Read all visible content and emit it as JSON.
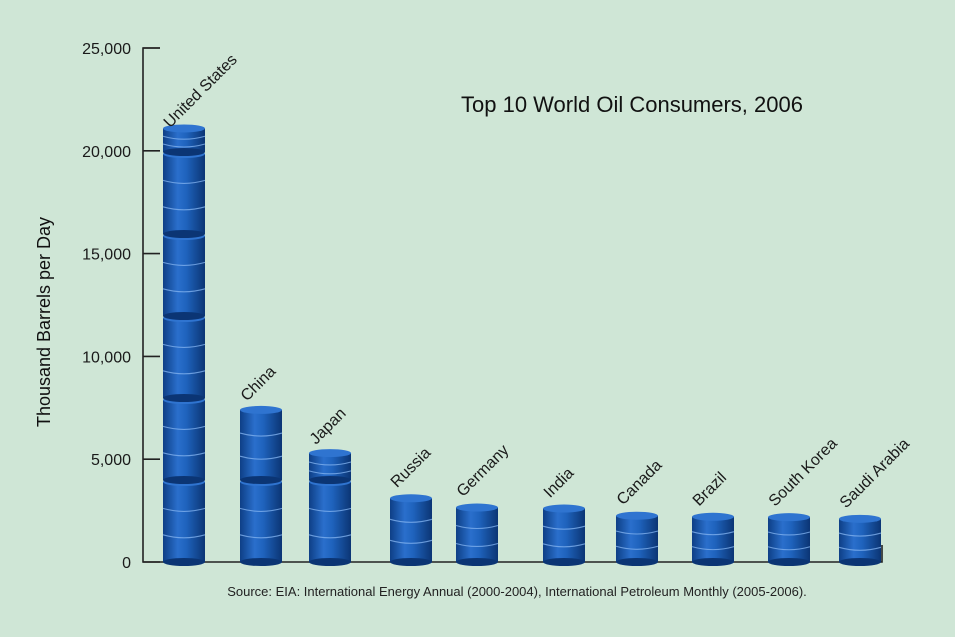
{
  "chart_data": {
    "type": "bar",
    "title": "Top 10 World Oil Consumers, 2006",
    "xlabel": "",
    "ylabel": "Thousand Barrels per Day",
    "source": "Source: EIA: International Energy Annual (2000-2004), International Petroleum Monthly (2005-2006).",
    "categories": [
      "United States",
      "China",
      "Japan",
      "Russia",
      "Germany",
      "India",
      "Canada",
      "Brazil",
      "South Korea",
      "Saudi Arabia"
    ],
    "values": [
      20600,
      7300,
      5200,
      3100,
      2650,
      2600,
      2250,
      2200,
      2180,
      2100
    ],
    "ylim": [
      0,
      25000
    ],
    "yticks": [
      0,
      5000,
      10000,
      15000,
      20000,
      25000
    ],
    "ytick_labels": [
      "0",
      "5,000",
      "10,000",
      "15,000",
      "20,000",
      "25,000"
    ],
    "grid": false,
    "legend": "none",
    "bar_style": "stacked oil barrels",
    "colors": {
      "background": "#cfe6d6",
      "barrel_dark": "#0e3f86",
      "barrel_mid": "#1f63bd",
      "barrel_light": "#4a8fe0",
      "axis": "#222222"
    }
  }
}
